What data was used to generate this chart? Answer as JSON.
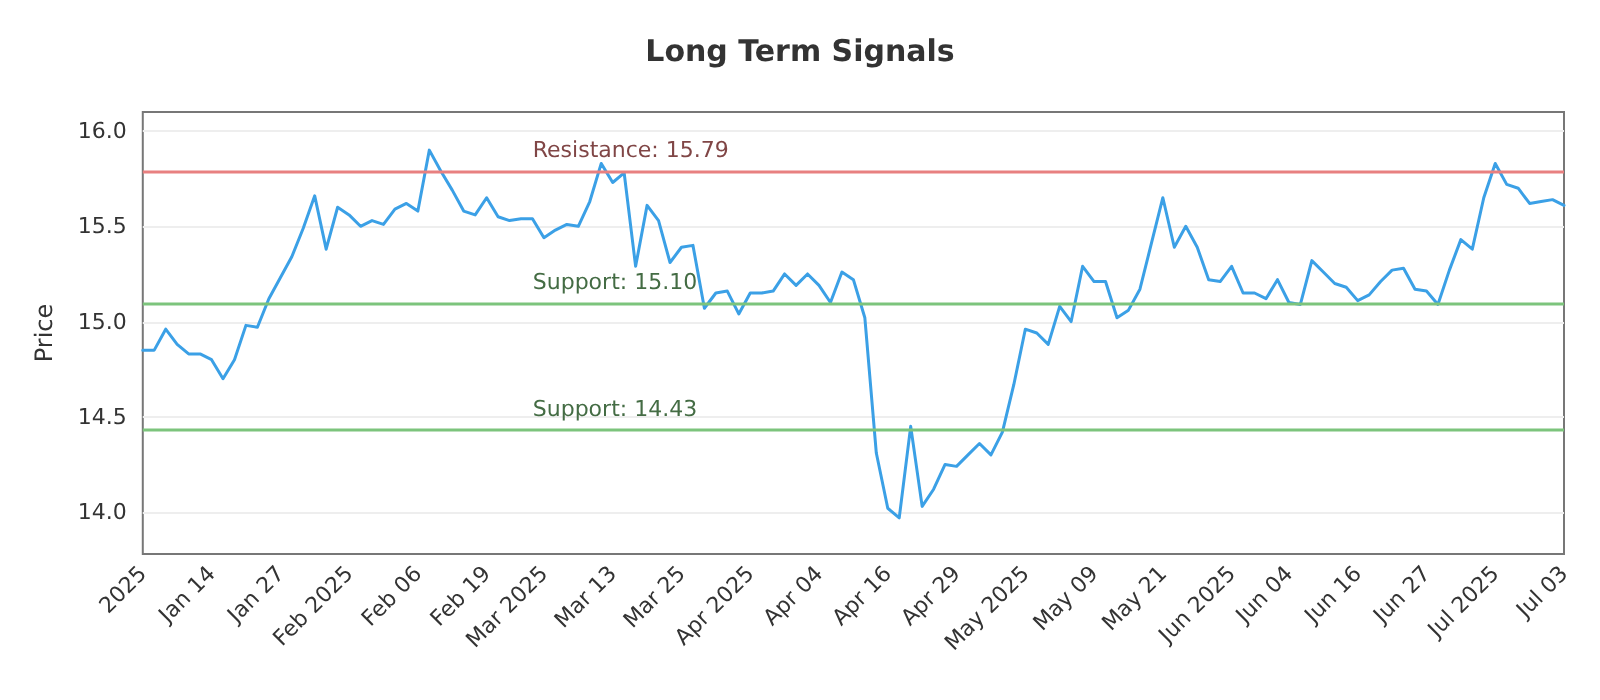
{
  "chart_data": {
    "type": "line",
    "title": "Long Term Signals",
    "ylabel": "Price",
    "categories": [
      "2025",
      null,
      null,
      null,
      null,
      null,
      "Jan 14",
      null,
      null,
      null,
      null,
      null,
      "Jan 27",
      null,
      null,
      null,
      null,
      null,
      "Feb 2025",
      null,
      null,
      null,
      null,
      null,
      "Feb 06",
      null,
      null,
      null,
      null,
      null,
      "Feb 19",
      null,
      null,
      null,
      null,
      "Mar 2025",
      null,
      null,
      null,
      null,
      null,
      "Mar 13",
      null,
      null,
      null,
      null,
      null,
      "Mar 25",
      null,
      null,
      null,
      null,
      null,
      "Apr 2025",
      null,
      null,
      null,
      null,
      null,
      "Apr 04",
      null,
      null,
      null,
      null,
      null,
      "Apr 16",
      null,
      null,
      null,
      null,
      null,
      "Apr 29",
      null,
      null,
      null,
      null,
      null,
      "May 2025",
      null,
      null,
      null,
      null,
      null,
      "May 09",
      null,
      null,
      null,
      null,
      null,
      "May 21",
      null,
      null,
      null,
      null,
      null,
      "Jun 2025",
      null,
      null,
      null,
      null,
      "Jun 04",
      null,
      null,
      null,
      null,
      null,
      "Jun 16",
      null,
      null,
      null,
      null,
      null,
      "Jun 27",
      null,
      null,
      null,
      null,
      null,
      "Jul 2025",
      null,
      null,
      null,
      null,
      null,
      "Jul 03"
    ],
    "series": [
      {
        "color": "#3ba0e6",
        "values": [
          14.85,
          14.85,
          14.96,
          14.88,
          14.83,
          14.83,
          14.8,
          14.7,
          14.8,
          14.98,
          14.97,
          15.12,
          15.23,
          15.34,
          15.49,
          15.66,
          15.38,
          15.6,
          15.56,
          15.5,
          15.53,
          15.51,
          15.59,
          15.62,
          15.58,
          15.9,
          15.79,
          15.69,
          15.58,
          15.56,
          15.65,
          15.55,
          15.53,
          15.54,
          15.54,
          15.44,
          15.48,
          15.51,
          15.5,
          15.63,
          15.83,
          15.73,
          15.78,
          15.29,
          15.61,
          15.53,
          15.31,
          15.39,
          15.4,
          15.07,
          15.15,
          15.16,
          15.04,
          15.15,
          15.15,
          15.16,
          15.25,
          15.19,
          15.25,
          15.19,
          15.1,
          15.26,
          15.22,
          15.02,
          14.31,
          14.02,
          13.97,
          14.45,
          14.03,
          14.12,
          14.25,
          14.24,
          14.3,
          14.36,
          14.3,
          14.42,
          14.67,
          14.96,
          14.94,
          14.88,
          15.08,
          15.0,
          15.29,
          15.21,
          15.21,
          15.02,
          15.06,
          15.17,
          15.41,
          15.65,
          15.39,
          15.5,
          15.39,
          15.22,
          15.21,
          15.29,
          15.15,
          15.15,
          15.12,
          15.22,
          15.1,
          15.09,
          15.32,
          15.26,
          15.2,
          15.18,
          15.11,
          15.14,
          15.21,
          15.27,
          15.28,
          15.17,
          15.16,
          15.09,
          15.27,
          15.43,
          15.38,
          15.65,
          15.83,
          15.72,
          15.7,
          15.62,
          15.63,
          15.64,
          15.61
        ]
      }
    ],
    "ylim": [
      13.78,
      16.1
    ],
    "yticks": [
      {
        "value": 14,
        "label": "14.0"
      },
      {
        "value": 14.5,
        "label": "14.5"
      },
      {
        "value": 15,
        "label": "15.0"
      },
      {
        "value": 15.5,
        "label": "15.5"
      },
      {
        "value": 16,
        "label": "16.0"
      }
    ],
    "ref_lines": [
      {
        "axis": "y",
        "value": 15.79,
        "label": "Resistance: 15.79",
        "color": "#e88080"
      },
      {
        "axis": "y",
        "value": 15.1,
        "label": "Support: 15.10",
        "color": "#7cc47c"
      },
      {
        "axis": "y",
        "value": 14.43,
        "label": "Support: 14.43",
        "color": "#7cc47c"
      }
    ],
    "grid": "y",
    "marker": "none",
    "line_style": "solid"
  }
}
